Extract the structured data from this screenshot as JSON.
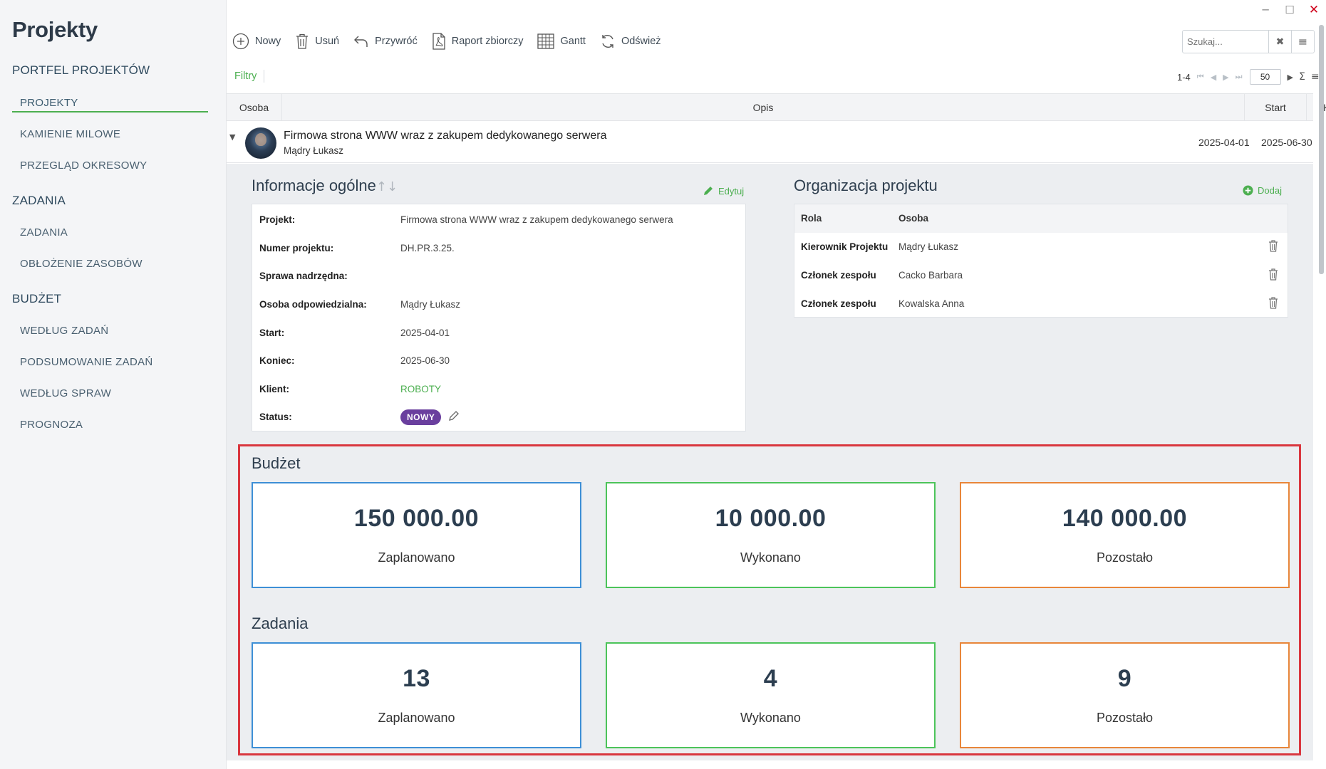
{
  "window": {
    "minimize": "─",
    "maximize": "☐",
    "close": "✕"
  },
  "sidebar": {
    "title": "Projekty",
    "sections": [
      {
        "label": "PORTFEL PROJEKTÓW",
        "items": [
          "PROJEKTY",
          "KAMIENIE MILOWE",
          "PRZEGLĄD OKRESOWY"
        ]
      },
      {
        "label": "ZADANIA",
        "items": [
          "ZADANIA",
          "OBŁOŻENIE ZASOBÓW"
        ]
      },
      {
        "label": "BUDŻET",
        "items": [
          "WEDŁUG ZADAŃ",
          "PODSUMOWANIE ZADAŃ",
          "WEDŁUG SPRAW",
          "PROGNOZA"
        ]
      }
    ],
    "active_item": "PROJEKTY"
  },
  "toolbar": {
    "new": "Nowy",
    "delete": "Usuń",
    "restore": "Przywróć",
    "report": "Raport zbiorczy",
    "gantt": "Gantt",
    "refresh": "Odśwież"
  },
  "search": {
    "placeholder": "Szukaj...",
    "clear_icon": "✖",
    "menu_icon": "≡"
  },
  "filters": {
    "label": "Filtry"
  },
  "pager": {
    "range": "1-4",
    "page_size": "50",
    "first": "⏮",
    "prev": "◀",
    "next": "▶",
    "last": "⏭",
    "sum": "Σ",
    "menu": "≡"
  },
  "grid": {
    "columns": {
      "person": "Osoba",
      "description": "Opis",
      "start": "Start",
      "end": "Koniec"
    },
    "row": {
      "caret": "▼",
      "title": "Firmowa strona WWW wraz z zakupem dedykowanego serwera",
      "person": "Mądry Łukasz",
      "start": "2025-04-01",
      "end": "2025-06-30"
    }
  },
  "info": {
    "title": "Informacje ogólne",
    "sort_icon": "↑↓",
    "edit": "Edytuj",
    "fields": [
      {
        "label": "Projekt:",
        "value": "Firmowa strona WWW wraz z zakupem dedykowanego serwera"
      },
      {
        "label": "Numer projektu:",
        "value": "DH.PR.3.25."
      },
      {
        "label": "Sprawa nadrzędna:",
        "value": ""
      },
      {
        "label": "Osoba odpowiedzialna:",
        "value": "Mądry Łukasz"
      },
      {
        "label": "Start:",
        "value": "2025-04-01"
      },
      {
        "label": "Koniec:",
        "value": "2025-06-30"
      },
      {
        "label": "Klient:",
        "value": "ROBOTY"
      },
      {
        "label": "Status:",
        "value": "NOWY"
      }
    ]
  },
  "org": {
    "title": "Organizacja projektu",
    "add": "Dodaj",
    "columns": {
      "role": "Rola",
      "person": "Osoba"
    },
    "rows": [
      {
        "role": "Kierownik Projektu",
        "person": "Mądry Łukasz"
      },
      {
        "role": "Członek zespołu",
        "person": "Cacko Barbara"
      },
      {
        "role": "Członek zespołu",
        "person": "Kowalska Anna"
      }
    ]
  },
  "budget": {
    "title": "Budżet",
    "planned": {
      "value": "150 000.00",
      "label": "Zaplanowano"
    },
    "done": {
      "value": "10 000.00",
      "label": "Wykonano"
    },
    "remaining": {
      "value": "140 000.00",
      "label": "Pozostało"
    }
  },
  "tasks": {
    "title": "Zadania",
    "planned": {
      "value": "13",
      "label": "Zaplanowano"
    },
    "done": {
      "value": "4",
      "label": "Wykonano"
    },
    "remaining": {
      "value": "9",
      "label": "Pozostało"
    }
  },
  "colors": {
    "accent": "#4caf50",
    "status_badge": "#6a3f9e",
    "highlight": "#d9363e",
    "kpi_blue": "#3d8fd6",
    "kpi_green": "#4cc45a",
    "kpi_orange": "#e8863a"
  }
}
